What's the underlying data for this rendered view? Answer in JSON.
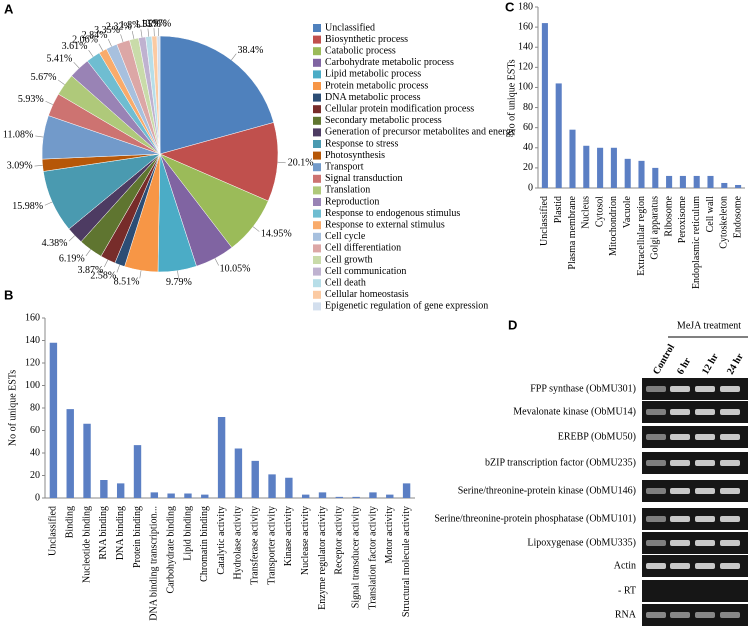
{
  "chart_data": [
    {
      "type": "pie",
      "panel": "A",
      "categories": [
        "Unclassified",
        "Biosynthetic process",
        "Catabolic process",
        "Carbohydrate metabolic process",
        "Lipid metabolic process",
        "Protein metabolic process",
        "DNA metabolic process",
        "Cellular protein modification process",
        "Secondary metabolic process",
        "Generation of precursor metabolites and energy",
        "Response to stress",
        "Photosynthesis",
        "Transport",
        "Signal transduction",
        "Translation",
        "Reproduction",
        "Response to endogenous stimulus",
        "Response to external stimulus",
        "Cell cycle",
        "Cell differentiation",
        "Cell growth",
        "Cell communication",
        "Cell death",
        "Cellular homeostasis",
        "Epigenetic regulation of gene expression"
      ],
      "values": [
        38.4,
        20.1,
        14.95,
        10.05,
        9.79,
        8.51,
        2.58,
        3.87,
        6.19,
        4.38,
        15.98,
        3.09,
        11.08,
        5.93,
        5.67,
        5.41,
        3.61,
        2.06,
        2.84,
        3.35,
        2.32,
        1.8,
        1.55,
        1.29,
        0.77
      ],
      "value_labels": [
        "38.4%",
        "20.1%",
        "14.95%",
        "10.05%",
        "9.79%",
        "8.51%",
        "2.58%",
        "3.87%",
        "6.19%",
        "4.38%",
        "15.98%",
        "3.09%",
        "11.08%",
        "5.93%",
        "5.67%",
        "5.41%",
        "3.61%",
        "2.06%",
        "2.84%",
        "3.35%",
        "2.32%",
        "1.8%",
        "1.55%",
        "1.29%",
        "0.77%"
      ],
      "colors": [
        "#4F81BD",
        "#C0504D",
        "#9BBB59",
        "#8064A2",
        "#4BACC6",
        "#F79646",
        "#2C4D75",
        "#772C2A",
        "#5F7530",
        "#4D3B62",
        "#4A9AB0",
        "#B65708",
        "#729ACA",
        "#CD7371",
        "#AFC97A",
        "#9983B5",
        "#6FBDD1",
        "#F9AB6B",
        "#A7C0DE",
        "#DCA7A6",
        "#C9DBA9",
        "#BFB2D0",
        "#B7DEE8",
        "#FBCAA2",
        "#D3DFEE"
      ],
      "legend": "right"
    },
    {
      "type": "bar",
      "panel": "B",
      "y_label": "No of unique ESTs",
      "categories": [
        "Unclassified",
        "Binding",
        "Nucleotide binding",
        "RNA binding",
        "DNA binding",
        "Protein binding",
        "DNA binding transcription...",
        "Carbohydrate binding",
        "Lipid binding",
        "Chromatin binding",
        "Catalytic activity",
        "Hydrolase activity",
        "Transferase activity",
        "Transporter activity",
        "Kinase activity",
        "Nuclease activity",
        "Enzyme regulator activity",
        "Receptor activity",
        "Signal transducer activity",
        "Translation factor activity",
        "Motor activity",
        "Structural molecule activity"
      ],
      "values": [
        138,
        79,
        66,
        16,
        13,
        47,
        5,
        4,
        4,
        3,
        72,
        44,
        33,
        21,
        18,
        3,
        5,
        1,
        1,
        5,
        3,
        13
      ],
      "color": "#5B7FC4",
      "ylim": [
        0,
        160
      ],
      "yticks": [
        0,
        20,
        40,
        60,
        80,
        100,
        120,
        140,
        160
      ]
    },
    {
      "type": "bar",
      "panel": "C",
      "y_label": "No of unique ESTs",
      "categories": [
        "Unclassified",
        "Plastid",
        "Plasma membrane",
        "Nucleus",
        "Cytosol",
        "Mitochondrion",
        "Vacuole",
        "Extracellular region",
        "Golgi apparatus",
        "Ribosome",
        "Peroxisome",
        "Endoplasmic reticulum",
        "Cell wall",
        "Cytoskeleton",
        "Endosome"
      ],
      "values": [
        164,
        104,
        58,
        42,
        40,
        40,
        29,
        27,
        20,
        12,
        12,
        12,
        12,
        5,
        3
      ],
      "color": "#5B7FC4",
      "ylim": [
        0,
        180
      ],
      "yticks": [
        0,
        20,
        40,
        60,
        80,
        100,
        120,
        140,
        160,
        180
      ]
    }
  ],
  "gel": {
    "panel": "D",
    "title": "MeJA treatment",
    "lanes": [
      "Control",
      "6 hr",
      "12 hr",
      "24 hr"
    ],
    "rows": [
      "FPP synthase (ObMU301)",
      "Mevalonate kinase (ObMU14)",
      "EREBP (ObMU50)",
      "bZIP transcription factor (ObMU235)",
      "Serine/threonine-protein kinase (ObMU146)",
      "Serine/threonine-protein phosphatase (ObMU101)",
      "Lipoxygenase (ObMU335)",
      "Actin",
      "- RT",
      "RNA"
    ]
  }
}
